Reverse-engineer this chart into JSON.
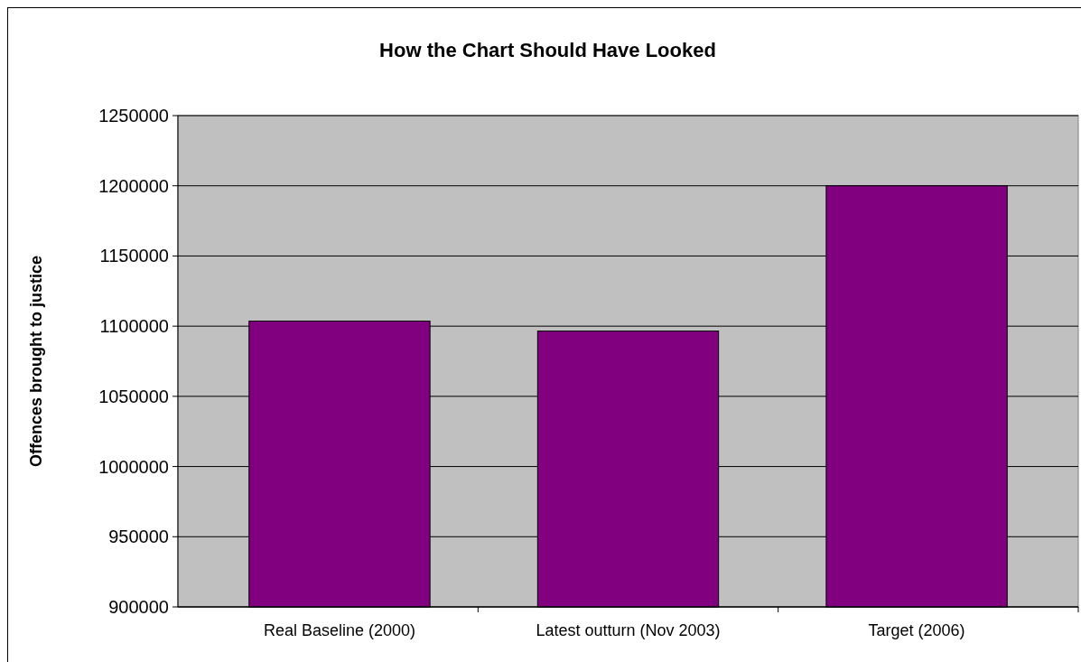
{
  "chart_data": {
    "type": "bar",
    "title": "How the Chart Should Have Looked",
    "ylabel": "Offences brought to justice",
    "categories": [
      "Real Baseline (2000)",
      "Latest outturn (Nov 2003)",
      "Target (2006)"
    ],
    "values": [
      1103600,
      1096500,
      1200000
    ],
    "color": "#800080",
    "ylim": [
      900000,
      1250000
    ],
    "yticks": [
      900000,
      950000,
      1000000,
      1050000,
      1100000,
      1150000,
      1200000,
      1250000
    ],
    "grid": "y"
  }
}
